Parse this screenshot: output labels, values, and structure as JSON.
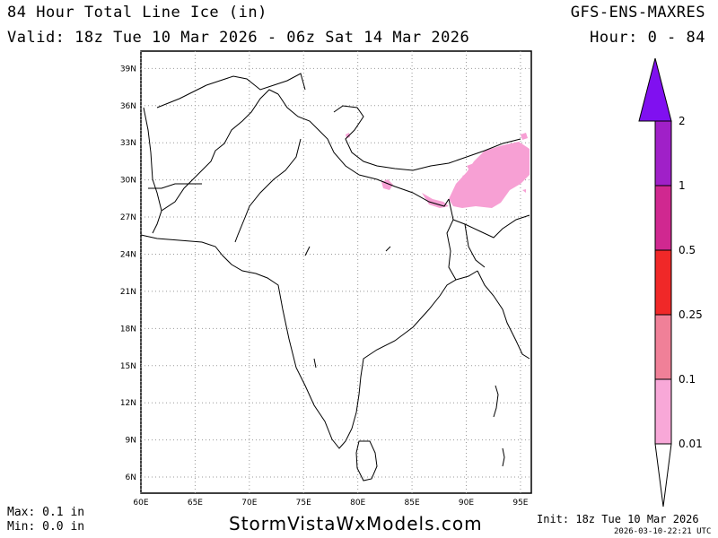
{
  "header": {
    "title": "84 Hour Total Line Ice (in)",
    "valid": "Valid: 18z Tue 10 Mar 2026 - 06z Sat 14 Mar 2026",
    "model": "GFS-ENS-MAXRES",
    "hour": "Hour: 0 - 84"
  },
  "stats": {
    "max": "Max: 0.1 in",
    "min": "Min: 0.0 in"
  },
  "footer": {
    "site": "StormVistaWxModels.com",
    "init": "Init: 18z Tue 10 Mar 2026",
    "stamp_date": "2026-03-10-22:21",
    "stamp_tz": "UTC"
  },
  "map": {
    "lat_labels": [
      "39N",
      "36N",
      "33N",
      "30N",
      "27N",
      "24N",
      "21N",
      "18N",
      "15N",
      "12N",
      "9N",
      "6N"
    ],
    "lon_labels": [
      "60E",
      "65E",
      "70E",
      "75E",
      "80E",
      "85E",
      "90E",
      "95E"
    ],
    "lat_range": [
      4.7,
      40.4
    ],
    "lon_range": [
      60,
      96
    ],
    "grid": true
  },
  "colorbar": {
    "levels": [
      "0.01",
      "0.1",
      "0.25",
      "0.5",
      "1",
      "2"
    ],
    "colors": [
      "#f8a8d8",
      "#f08098",
      "#f02828",
      "#d02890",
      "#a020c8",
      "#8010f0"
    ]
  },
  "ice_color": "#f7a0d4"
}
